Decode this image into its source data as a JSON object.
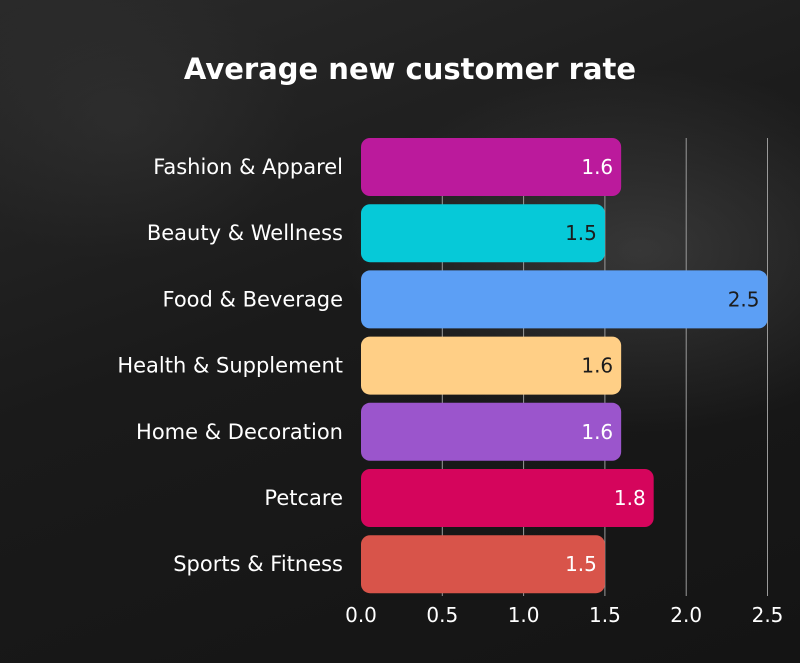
{
  "chart_data": {
    "type": "bar",
    "orientation": "horizontal",
    "title": "Average new customer rate",
    "categories": [
      "Fashion & Apparel",
      "Beauty & Wellness",
      "Food & Beverage",
      "Health & Supplement",
      "Home & Decoration",
      "Petcare",
      "Sports & Fitness"
    ],
    "values": [
      1.6,
      1.5,
      2.5,
      1.6,
      1.6,
      1.8,
      1.5
    ],
    "value_labels": [
      "1.6",
      "1.5",
      "2.5",
      "1.6",
      "1.6",
      "1.8",
      "1.5"
    ],
    "bar_colors": [
      "#bb1a9c",
      "#06c9d8",
      "#5c9ff5",
      "#ffcf86",
      "#9b55cc",
      "#d5055c",
      "#d8544a"
    ],
    "value_label_colors": [
      "#ffffff",
      "#1c1c1c",
      "#1c1c1c",
      "#1c1c1c",
      "#ffffff",
      "#ffffff",
      "#ffffff"
    ],
    "xlim": [
      0,
      2.5
    ],
    "x_ticks": [
      "0.0",
      "0.5",
      "1.0",
      "1.5",
      "2.0",
      "2.5"
    ],
    "x_tick_values": [
      0,
      0.5,
      1.0,
      1.5,
      2.0,
      2.5
    ],
    "grid": true,
    "grid_color": "#9a9a9a",
    "text_color": "#ffffff",
    "background": "#1c1c1c"
  }
}
